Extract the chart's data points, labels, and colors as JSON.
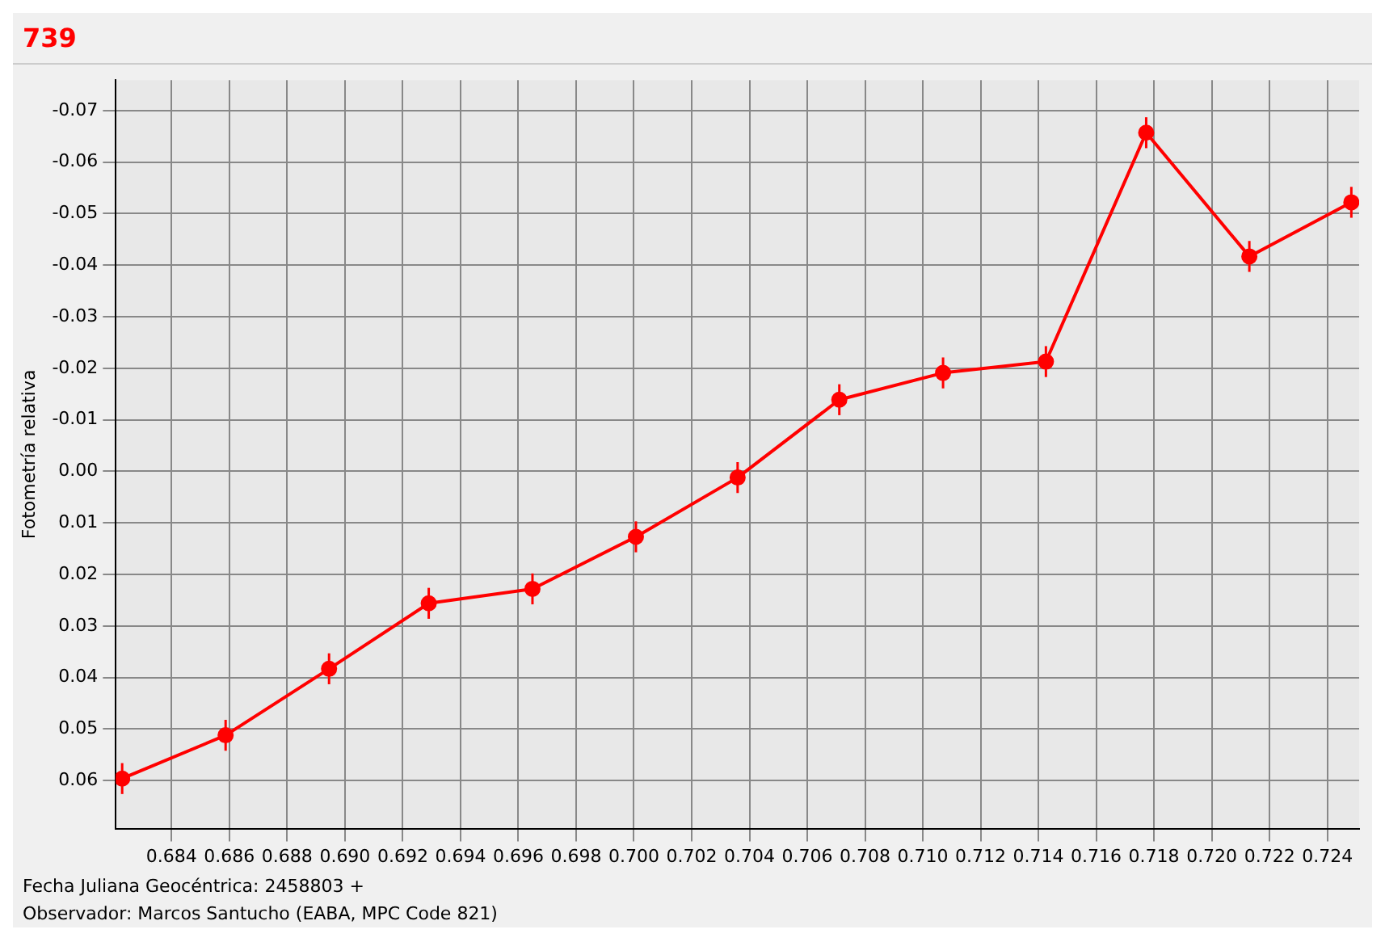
{
  "chart_data": {
    "type": "line",
    "title": "739",
    "xlabel": "Fecha Juliana Geocéntrica: 2458803 +",
    "ylabel": "Fotometría relativa",
    "annotations": [
      "Observador: Marcos Santucho (EABA, MPC Code 821)"
    ],
    "series": [
      {
        "color": "#ff0000",
        "x": [
          0.68229,
          0.68587,
          0.68945,
          0.6929,
          0.69649,
          0.70007,
          0.70359,
          0.70711,
          0.7107,
          0.71426,
          0.71773,
          0.7213,
          0.72483
        ],
        "values": [
          0.0596,
          0.0512,
          0.0383,
          0.0256,
          0.0228,
          0.0127,
          0.0012,
          -0.0139,
          -0.0191,
          -0.0213,
          -0.0657,
          -0.0417,
          -0.0522
        ],
        "errors": [
          0.003,
          0.003,
          0.003,
          0.003,
          0.003,
          0.003,
          0.003,
          0.003,
          0.003,
          0.003,
          0.003,
          0.003,
          0.003
        ]
      }
    ],
    "xlim": [
      0.68207,
      0.7251
    ],
    "ylim": [
      0.0693,
      -0.0759
    ],
    "xticks": [
      0.684,
      0.686,
      0.688,
      {
        "value": 0.69,
        "label": "0.690"
      },
      0.692,
      0.694,
      0.696,
      0.698,
      {
        "value": 0.7,
        "label": "0.700"
      },
      0.702,
      0.704,
      0.706,
      0.708,
      {
        "value": 0.71,
        "label": "0.710"
      },
      0.712,
      0.714,
      0.716,
      0.718,
      {
        "value": 0.72,
        "label": "0.720"
      },
      0.722,
      0.724
    ],
    "yticks": [
      -0.07,
      -0.06,
      -0.05,
      -0.04,
      -0.03,
      -0.02,
      -0.01,
      {
        "value": 0,
        "label": "0.00"
      },
      0.01,
      0.02,
      0.03,
      0.04,
      0.05,
      0.06
    ],
    "grid": true,
    "legend": false,
    "marker": "circle",
    "line_style": "solid"
  }
}
